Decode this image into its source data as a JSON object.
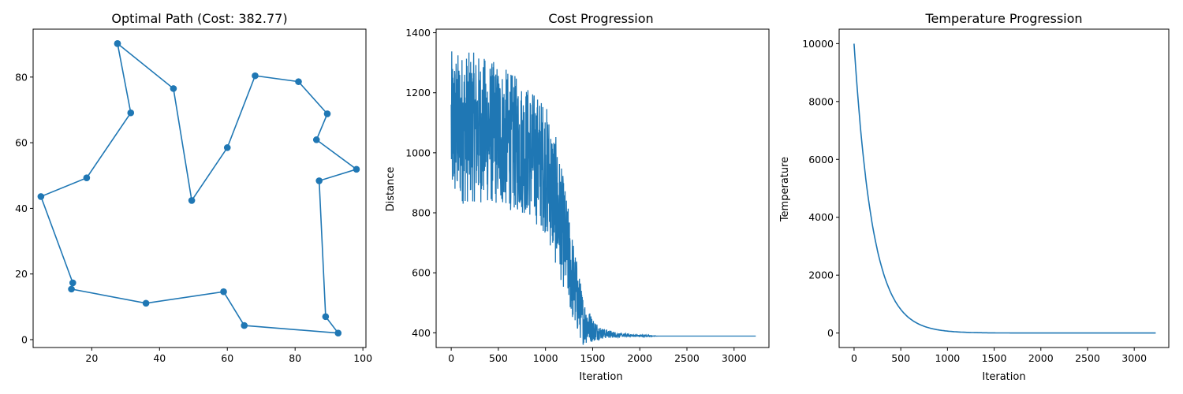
{
  "line_color": "#1f77b4",
  "chart_data": [
    {
      "type": "line",
      "title": "Optimal Path (Cost: 382.77)",
      "xlabel": "",
      "ylabel": "",
      "xlim": [
        2.7,
        100.9
      ],
      "ylim": [
        -2.4,
        94.6
      ],
      "xticks": [
        20,
        40,
        60,
        80,
        100
      ],
      "yticks": [
        0,
        20,
        40,
        60,
        80
      ],
      "markers": true,
      "x": [
        27.6,
        31.5,
        18.5,
        5.0,
        14.4,
        14.0,
        36.0,
        58.9,
        65.0,
        92.7,
        89.0,
        87.1,
        98.1,
        86.3,
        89.5,
        81.0,
        68.2,
        60.0,
        49.5,
        44.1,
        27.6
      ],
      "y": [
        90.2,
        69.1,
        49.3,
        43.6,
        17.3,
        15.4,
        11.1,
        14.6,
        4.3,
        2.0,
        7.0,
        48.4,
        51.9,
        60.9,
        68.8,
        78.6,
        80.4,
        58.5,
        42.4,
        76.5,
        90.2
      ]
    },
    {
      "type": "line",
      "title": "Cost Progression",
      "xlabel": "Iteration",
      "ylabel": "Distance",
      "xlim": [
        -160,
        3370
      ],
      "ylim": [
        351,
        1412
      ],
      "xticks": [
        0,
        500,
        1000,
        1500,
        2000,
        2500,
        3000
      ],
      "yticks": [
        400,
        600,
        800,
        1000,
        1200,
        1400
      ],
      "noise_profile": [
        [
          0,
          1080,
          260
        ],
        [
          250,
          1085,
          250
        ],
        [
          500,
          1060,
          240
        ],
        [
          800,
          1010,
          220
        ],
        [
          1000,
          950,
          220
        ],
        [
          1100,
          850,
          220
        ],
        [
          1200,
          720,
          180
        ],
        [
          1300,
          560,
          140
        ],
        [
          1400,
          440,
          80
        ],
        [
          1500,
          410,
          40
        ],
        [
          1600,
          398,
          18
        ],
        [
          1800,
          392,
          6
        ],
        [
          2000,
          390,
          3
        ],
        [
          2200,
          389,
          0
        ],
        [
          3230,
          389,
          0
        ]
      ]
    },
    {
      "type": "line",
      "title": "Temperature Progression",
      "xlabel": "Iteration",
      "ylabel": "Temperature",
      "xlim": [
        -160,
        3370
      ],
      "ylim": [
        -500,
        10500
      ],
      "xticks": [
        0,
        500,
        1000,
        1500,
        2000,
        2500,
        3000
      ],
      "yticks": [
        0,
        2000,
        4000,
        6000,
        8000,
        10000
      ],
      "curve": {
        "start": 10000,
        "decay_per_iteration": 0.995,
        "iterations": 3230
      }
    }
  ]
}
